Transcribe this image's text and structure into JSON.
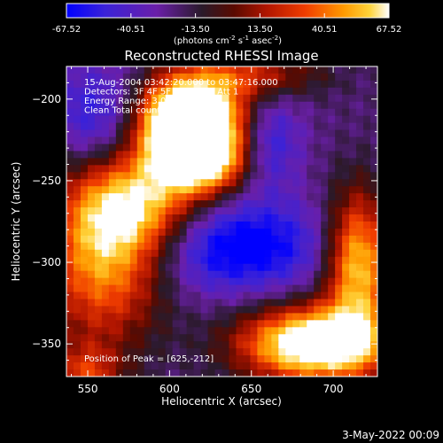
{
  "chart_data": {
    "type": "heatmap",
    "title": "Reconstructed RHESSI Image",
    "xlabel": "Heliocentric X (arcsec)",
    "ylabel": "Heliocentric Y (arcsec)",
    "xlim": [
      537,
      727
    ],
    "ylim": [
      -370,
      -180
    ],
    "x_ticks": [
      "550",
      "600",
      "650",
      "700"
    ],
    "y_ticks": [
      "-200",
      "-250",
      "-300",
      "-350"
    ],
    "colorbar": {
      "label_pre": "(photons cm",
      "label_sup1": "-2",
      "label_mid1": " s",
      "label_sup2": "-1",
      "label_mid2": " asec",
      "label_sup3": "-2",
      "label_post": ")",
      "ticks": [
        "-67.52",
        "-40.51",
        "-13.50",
        "13.50",
        "40.51",
        "67.52"
      ],
      "range": [
        -67.52,
        67.52
      ]
    },
    "annotations": [
      "15-Aug-2004 03:42:20.000 to 03:47:16.000",
      "Detectors: 3F 4F 5F 6F 7F 8F, Att 1",
      "Energy Range: 3.0 - 6.0 keV",
      "Clean     Total counts: 1.85e+03"
    ],
    "peak_label": "Position of Peak = [625,-212]",
    "peak": [
      625,
      -212
    ],
    "blobs": [
      {
        "x": 612,
        "y": -212,
        "sx": 24,
        "sy": 18,
        "amp": 140
      },
      {
        "x": 618,
        "y": -238,
        "sx": 20,
        "sy": 14,
        "amp": 90
      },
      {
        "x": 580,
        "y": -265,
        "sx": 28,
        "sy": 22,
        "amp": 70
      },
      {
        "x": 560,
        "y": -300,
        "sx": 26,
        "sy": 34,
        "amp": 70
      },
      {
        "x": 690,
        "y": -350,
        "sx": 32,
        "sy": 16,
        "amp": 115
      },
      {
        "x": 715,
        "y": -300,
        "sx": 14,
        "sy": 30,
        "amp": 85
      },
      {
        "x": 650,
        "y": -185,
        "sx": 30,
        "sy": 10,
        "amp": 40
      },
      {
        "x": 548,
        "y": -370,
        "sx": 16,
        "sy": 14,
        "amp": 45
      },
      {
        "x": 660,
        "y": -225,
        "sx": 14,
        "sy": 20,
        "amp": -40
      },
      {
        "x": 640,
        "y": -290,
        "sx": 40,
        "sy": 20,
        "amp": -55
      },
      {
        "x": 560,
        "y": -210,
        "sx": 22,
        "sy": 22,
        "amp": -40
      }
    ],
    "background": -22,
    "colormap": [
      "#0000ff",
      "#3b22d8",
      "#6a1fa8",
      "#2a1a2a",
      "#5a0a00",
      "#b01500",
      "#f03d00",
      "#ff9a00",
      "#ffd33a",
      "#ffffff"
    ]
  },
  "footer": {
    "date": "3-May-2022 00:09"
  }
}
